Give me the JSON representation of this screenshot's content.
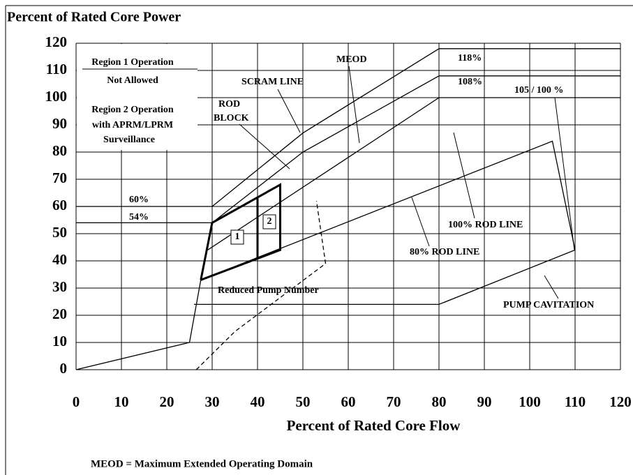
{
  "chart_data": {
    "type": "line",
    "title": "Percent of Rated Core Power",
    "x_label": "Percent of Rated Core Flow",
    "footnote": "MEOD = Maximum Extended Operating Domain",
    "xlim": [
      0,
      120
    ],
    "ylim": [
      0,
      120
    ],
    "xticks": [
      0,
      10,
      20,
      30,
      40,
      50,
      60,
      70,
      80,
      90,
      100,
      110,
      120
    ],
    "yticks": [
      0,
      10,
      20,
      30,
      40,
      50,
      60,
      70,
      80,
      90,
      100,
      110,
      120
    ],
    "grid": true,
    "color": "#000000",
    "lines": [
      {
        "style": "thin",
        "x": [
          0,
          25,
          27.5
        ],
        "y": [
          0,
          10,
          33
        ]
      },
      {
        "style": "thin",
        "x": [
          0,
          30,
          50,
          80,
          120
        ],
        "y": [
          60,
          60,
          87,
          118,
          118
        ]
      },
      {
        "style": "thin",
        "x": [
          0,
          30,
          50,
          80,
          120
        ],
        "y": [
          54,
          54,
          80,
          108,
          108
        ]
      },
      {
        "style": "thin",
        "x": [
          29,
          80,
          120
        ],
        "y": [
          44,
          100,
          100
        ]
      },
      {
        "style": "thin",
        "x": [
          27.5,
          105,
          110
        ],
        "y": [
          33,
          84,
          44
        ]
      },
      {
        "style": "thin",
        "x": [
          26,
          80,
          110
        ],
        "y": [
          24,
          24,
          44
        ]
      },
      {
        "style": "dashed",
        "x": [
          26.5,
          35,
          55,
          53
        ],
        "y": [
          0,
          14,
          39,
          62
        ]
      },
      {
        "style": "bold",
        "x": [
          27.5,
          30,
          45,
          45,
          27.5
        ],
        "y": [
          33,
          54,
          68,
          44,
          33
        ]
      },
      {
        "style": "bold",
        "x": [
          40,
          40
        ],
        "y": [
          41,
          63
        ]
      }
    ],
    "annotations": [
      "Region 1 Operation",
      "Not Allowed",
      "Region 2 Operation",
      "with APRM/LPRM",
      "Surveillance",
      "SCRAM LINE",
      "MEOD",
      "ROD",
      "BLOCK",
      "118%",
      "108%",
      "105 / 100 %",
      "60%",
      "54%",
      "1",
      "2",
      "Reduced Pump Number",
      "100% ROD LINE",
      "80% ROD LINE",
      "PUMP CAVITATION"
    ]
  }
}
